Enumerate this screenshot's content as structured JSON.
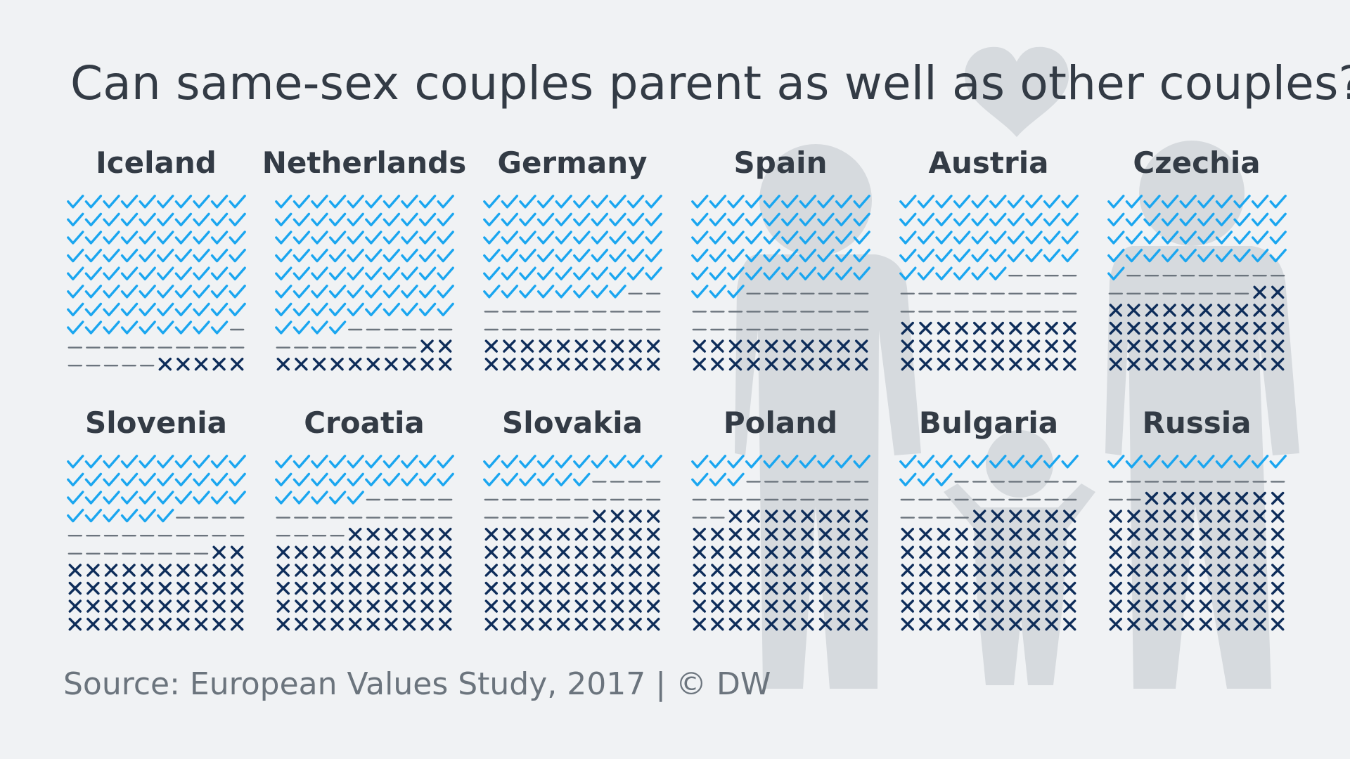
{
  "title": "Can same-sex couples parent as well as other couples?",
  "source": "Source: European Values Study, 2017 | © DW",
  "colors": {
    "background": "#f0f2f4",
    "yes": "#1aa6f0",
    "neutral": "#6b747d",
    "no": "#0e2d5a",
    "silhouette": "#d6dade"
  },
  "icons": {
    "yes": "check-icon",
    "neutral": "dash-icon",
    "no": "cross-icon"
  },
  "chart_data": {
    "type": "table",
    "grid": "10x10 unit chart, 1 icon = 1%",
    "categories": [
      "yes",
      "neutral",
      "no"
    ],
    "countries": [
      {
        "name": "Iceland",
        "yes": 79,
        "neutral": 16,
        "no": 5
      },
      {
        "name": "Netherlands",
        "yes": 74,
        "neutral": 14,
        "no": 12
      },
      {
        "name": "Germany",
        "yes": 58,
        "neutral": 22,
        "no": 20
      },
      {
        "name": "Spain",
        "yes": 53,
        "neutral": 27,
        "no": 20
      },
      {
        "name": "Austria",
        "yes": 46,
        "neutral": 24,
        "no": 30
      },
      {
        "name": "Czechia",
        "yes": 41,
        "neutral": 17,
        "no": 42
      },
      {
        "name": "Slovenia",
        "yes": 36,
        "neutral": 22,
        "no": 42
      },
      {
        "name": "Croatia",
        "yes": 25,
        "neutral": 19,
        "no": 56
      },
      {
        "name": "Slovakia",
        "yes": 16,
        "neutral": 20,
        "no": 64
      },
      {
        "name": "Poland",
        "yes": 13,
        "neutral": 19,
        "no": 68
      },
      {
        "name": "Bulgaria",
        "yes": 13,
        "neutral": 21,
        "no": 66
      },
      {
        "name": "Russia",
        "yes": 10,
        "neutral": 12,
        "no": 78
      }
    ]
  }
}
